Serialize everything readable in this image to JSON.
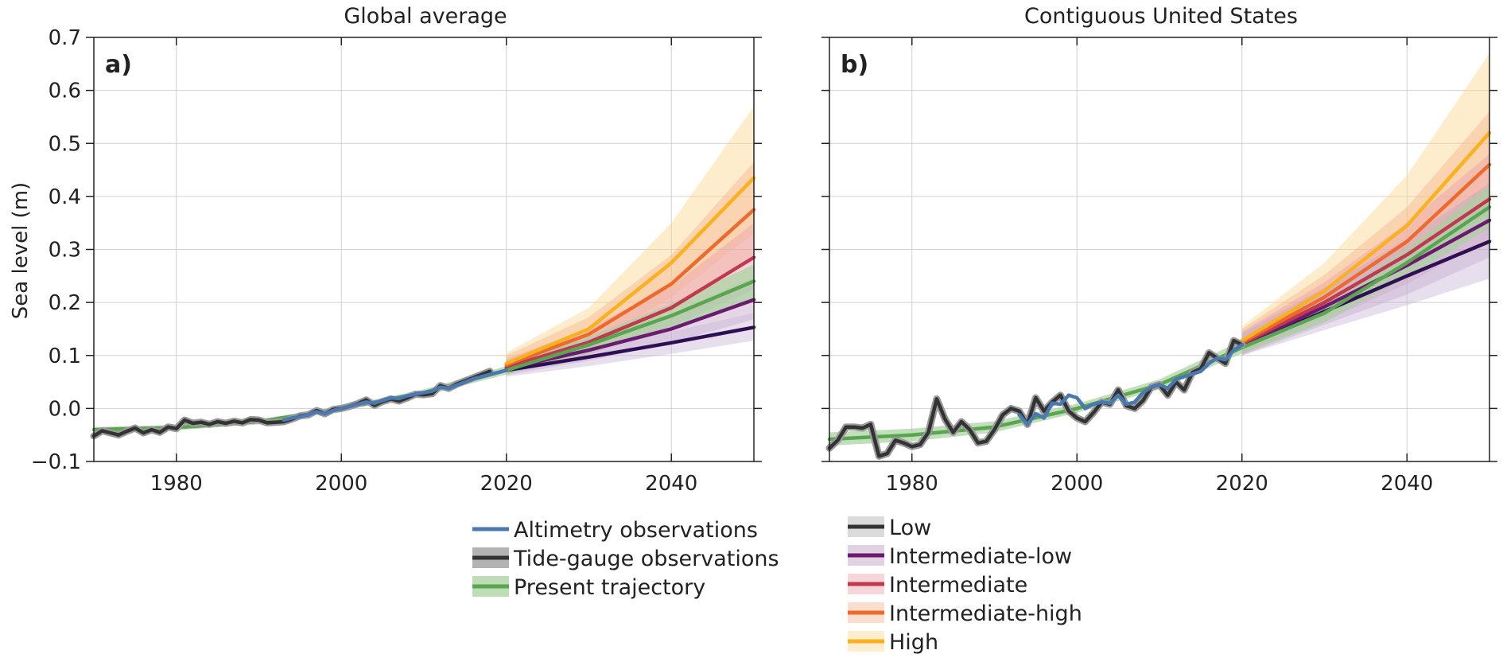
{
  "chart_data": [
    {
      "type": "line",
      "panel_label": "a)",
      "title": "Global average",
      "xlabel": "",
      "ylabel": "Sea level (m)",
      "xlim": [
        1970,
        2050
      ],
      "ylim": [
        -0.1,
        0.7
      ],
      "x_ticks": [
        "1980",
        "2000",
        "2020",
        "2040"
      ],
      "y_ticks": [
        "−0.1",
        "0.0",
        "0.1",
        "0.2",
        "0.3",
        "0.4",
        "0.5",
        "0.6",
        "0.7"
      ],
      "grid": true,
      "observations": {
        "tide_gauge": {
          "name": "Tide-gauge observations",
          "x": [
            1970,
            1971,
            1972,
            1973,
            1974,
            1975,
            1976,
            1977,
            1978,
            1979,
            1980,
            1981,
            1982,
            1983,
            1984,
            1985,
            1986,
            1987,
            1988,
            1989,
            1990,
            1991,
            1992,
            1993,
            1994,
            1995,
            1996,
            1997,
            1998,
            1999,
            2000,
            2001,
            2002,
            2003,
            2004,
            2005,
            2006,
            2007,
            2008,
            2009,
            2010,
            2011,
            2012,
            2013,
            2014,
            2015,
            2016,
            2017,
            2018
          ],
          "y": [
            -0.052,
            -0.042,
            -0.046,
            -0.05,
            -0.043,
            -0.037,
            -0.046,
            -0.04,
            -0.045,
            -0.035,
            -0.038,
            -0.022,
            -0.028,
            -0.026,
            -0.03,
            -0.025,
            -0.028,
            -0.024,
            -0.027,
            -0.021,
            -0.022,
            -0.027,
            -0.026,
            -0.025,
            -0.02,
            -0.014,
            -0.012,
            -0.004,
            -0.01,
            -0.002,
            0.0,
            0.004,
            0.009,
            0.016,
            0.006,
            0.013,
            0.018,
            0.014,
            0.02,
            0.027,
            0.026,
            0.028,
            0.043,
            0.038,
            0.046,
            0.052,
            0.058,
            0.064,
            0.07
          ]
        },
        "altimetry": {
          "name": "Altimetry observations",
          "x": [
            1993,
            1994,
            1995,
            1996,
            1997,
            1998,
            1999,
            2000,
            2001,
            2002,
            2003,
            2004,
            2005,
            2006,
            2007,
            2008,
            2009,
            2010,
            2011,
            2012,
            2013,
            2014,
            2015,
            2016,
            2017,
            2018,
            2019,
            2020
          ],
          "y": [
            -0.022,
            -0.018,
            -0.015,
            -0.012,
            -0.006,
            -0.01,
            -0.004,
            0.0,
            0.004,
            0.008,
            0.012,
            0.01,
            0.015,
            0.02,
            0.019,
            0.024,
            0.027,
            0.03,
            0.033,
            0.04,
            0.038,
            0.044,
            0.05,
            0.056,
            0.06,
            0.064,
            0.068,
            0.072
          ]
        }
      },
      "present_trajectory": {
        "name": "Present trajectory",
        "x": [
          1970,
          1980,
          1990,
          2000,
          2010,
          2020,
          2030,
          2040,
          2050
        ],
        "y": [
          -0.04,
          -0.036,
          -0.025,
          0.0,
          0.03,
          0.072,
          0.12,
          0.175,
          0.24
        ],
        "lower": [
          -0.045,
          -0.041,
          -0.03,
          -0.004,
          0.024,
          0.064,
          0.105,
          0.152,
          0.208
        ],
        "upper": [
          -0.035,
          -0.031,
          -0.02,
          0.004,
          0.036,
          0.08,
          0.135,
          0.198,
          0.272
        ]
      },
      "scenarios": [
        {
          "name": "Low",
          "x": [
            2020,
            2030,
            2040,
            2050
          ],
          "y": [
            0.072,
            0.097,
            0.124,
            0.153
          ],
          "lower": [
            0.06,
            0.08,
            0.103,
            0.128
          ],
          "upper": [
            0.082,
            0.113,
            0.145,
            0.18
          ]
        },
        {
          "name": "Intermediate-low",
          "x": [
            2020,
            2030,
            2040,
            2050
          ],
          "y": [
            0.075,
            0.11,
            0.15,
            0.205
          ],
          "lower": [
            0.063,
            0.09,
            0.124,
            0.168
          ],
          "upper": [
            0.088,
            0.13,
            0.178,
            0.248
          ]
        },
        {
          "name": "Intermediate",
          "x": [
            2020,
            2030,
            2040,
            2050
          ],
          "y": [
            0.078,
            0.125,
            0.19,
            0.285
          ],
          "lower": [
            0.064,
            0.102,
            0.155,
            0.225
          ],
          "upper": [
            0.093,
            0.152,
            0.23,
            0.35
          ]
        },
        {
          "name": "Intermediate-high",
          "x": [
            2020,
            2030,
            2040,
            2050
          ],
          "y": [
            0.082,
            0.14,
            0.235,
            0.375
          ],
          "lower": [
            0.066,
            0.112,
            0.185,
            0.29
          ],
          "upper": [
            0.1,
            0.172,
            0.29,
            0.465
          ]
        },
        {
          "name": "High",
          "x": [
            2020,
            2030,
            2040,
            2050
          ],
          "y": [
            0.085,
            0.15,
            0.275,
            0.435
          ],
          "lower": [
            0.068,
            0.118,
            0.21,
            0.33
          ],
          "upper": [
            0.105,
            0.19,
            0.35,
            0.57
          ]
        }
      ]
    },
    {
      "type": "line",
      "panel_label": "b)",
      "title": "Contiguous United States",
      "xlabel": "",
      "ylabel": "",
      "xlim": [
        1970,
        2050
      ],
      "ylim": [
        -0.1,
        0.7
      ],
      "x_ticks": [
        "1980",
        "2000",
        "2020",
        "2040"
      ],
      "y_ticks": [
        "−0.1",
        "0.0",
        "0.1",
        "0.2",
        "0.3",
        "0.4",
        "0.5",
        "0.6",
        "0.7"
      ],
      "grid": true,
      "observations": {
        "tide_gauge": {
          "name": "Tide-gauge observations",
          "x": [
            1970,
            1971,
            1972,
            1973,
            1974,
            1975,
            1976,
            1977,
            1978,
            1979,
            1980,
            1981,
            1982,
            1983,
            1984,
            1985,
            1986,
            1987,
            1988,
            1989,
            1990,
            1991,
            1992,
            1993,
            1994,
            1995,
            1996,
            1997,
            1998,
            1999,
            2000,
            2001,
            2002,
            2003,
            2004,
            2005,
            2006,
            2007,
            2008,
            2009,
            2010,
            2011,
            2012,
            2013,
            2014,
            2015,
            2016,
            2017,
            2018,
            2019,
            2020
          ],
          "y": [
            -0.075,
            -0.06,
            -0.035,
            -0.035,
            -0.037,
            -0.03,
            -0.09,
            -0.085,
            -0.06,
            -0.065,
            -0.072,
            -0.068,
            -0.045,
            0.018,
            -0.02,
            -0.045,
            -0.025,
            -0.04,
            -0.065,
            -0.062,
            -0.04,
            -0.012,
            0.0,
            -0.005,
            -0.03,
            0.02,
            -0.005,
            0.012,
            0.025,
            -0.005,
            -0.018,
            -0.025,
            -0.008,
            0.012,
            0.008,
            0.035,
            0.005,
            0.0,
            0.015,
            0.04,
            0.045,
            0.025,
            0.05,
            0.035,
            0.068,
            0.075,
            0.105,
            0.095,
            0.085,
            0.128,
            0.12
          ]
        },
        "altimetry": {
          "name": "Altimetry observations",
          "x": [
            1993,
            1994,
            1995,
            1996,
            1997,
            1998,
            1999,
            2000,
            2001,
            2002,
            2003,
            2004,
            2005,
            2006,
            2007,
            2008,
            2009,
            2010,
            2011,
            2012,
            2013,
            2014,
            2015,
            2016,
            2017,
            2018,
            2019,
            2020
          ],
          "y": [
            -0.012,
            -0.03,
            -0.01,
            -0.018,
            0.01,
            0.008,
            0.025,
            0.02,
            0.0,
            0.008,
            0.012,
            0.01,
            0.025,
            0.008,
            0.012,
            0.03,
            0.04,
            0.045,
            0.038,
            0.055,
            0.06,
            0.065,
            0.07,
            0.085,
            0.095,
            0.092,
            0.11,
            0.12
          ]
        }
      },
      "present_trajectory": {
        "name": "Present trajectory",
        "x": [
          1970,
          1980,
          1990,
          2000,
          2010,
          2020,
          2030,
          2040,
          2050
        ],
        "y": [
          -0.058,
          -0.05,
          -0.035,
          0.0,
          0.045,
          0.115,
          0.18,
          0.275,
          0.38
        ],
        "lower": [
          -0.07,
          -0.062,
          -0.045,
          -0.008,
          0.036,
          0.104,
          0.162,
          0.248,
          0.34
        ],
        "upper": [
          -0.045,
          -0.038,
          -0.024,
          0.009,
          0.055,
          0.128,
          0.198,
          0.302,
          0.42
        ]
      },
      "scenarios": [
        {
          "name": "Low",
          "x": [
            2020,
            2030,
            2040,
            2050
          ],
          "y": [
            0.118,
            0.183,
            0.25,
            0.315
          ],
          "lower": [
            0.1,
            0.148,
            0.195,
            0.245
          ],
          "upper": [
            0.14,
            0.22,
            0.3,
            0.385
          ]
        },
        {
          "name": "Intermediate-low",
          "x": [
            2020,
            2030,
            2040,
            2050
          ],
          "y": [
            0.12,
            0.192,
            0.27,
            0.355
          ],
          "lower": [
            0.1,
            0.158,
            0.215,
            0.285
          ],
          "upper": [
            0.142,
            0.228,
            0.32,
            0.425
          ]
        },
        {
          "name": "Intermediate",
          "x": [
            2020,
            2030,
            2040,
            2050
          ],
          "y": [
            0.122,
            0.2,
            0.29,
            0.395
          ],
          "lower": [
            0.102,
            0.165,
            0.235,
            0.32
          ],
          "upper": [
            0.145,
            0.238,
            0.35,
            0.48
          ]
        },
        {
          "name": "Intermediate-high",
          "x": [
            2020,
            2030,
            2040,
            2050
          ],
          "y": [
            0.125,
            0.21,
            0.315,
            0.46
          ],
          "lower": [
            0.104,
            0.172,
            0.255,
            0.37
          ],
          "upper": [
            0.15,
            0.252,
            0.38,
            0.56
          ]
        },
        {
          "name": "High",
          "x": [
            2020,
            2030,
            2040,
            2050
          ],
          "y": [
            0.128,
            0.222,
            0.345,
            0.52
          ],
          "lower": [
            0.105,
            0.18,
            0.28,
            0.415
          ],
          "upper": [
            0.155,
            0.275,
            0.44,
            0.67
          ]
        }
      ]
    }
  ],
  "legend": {
    "left": [
      {
        "label": "Altimetry observations",
        "color": "#4a78b0",
        "band": false
      },
      {
        "label": "Tide-gauge observations",
        "color": "#333333",
        "band_color": "#9a9a9a",
        "band": true
      },
      {
        "label": "Present trajectory",
        "color": "#5aa550",
        "band_color": "#a8d29f",
        "band": true
      }
    ],
    "right": [
      {
        "label": "Low",
        "color": "#333333",
        "band_color": "#cfcfcf",
        "band": true
      },
      {
        "label": "Intermediate-low",
        "color": "#6b1a6f",
        "band_color": "#d6c3da",
        "band": true
      },
      {
        "label": "Intermediate",
        "color": "#c0394e",
        "band_color": "#f2c9cf",
        "band": true
      },
      {
        "label": "Intermediate-high",
        "color": "#ee6a2c",
        "band_color": "#fbd3bd",
        "band": true
      },
      {
        "label": "High",
        "color": "#fbb01e",
        "band_color": "#fde7bf",
        "band": true
      }
    ]
  },
  "colors": {
    "altimetry": "#4a78b0",
    "tide_gauge": "#333333",
    "tide_gauge_band": "#9a9a9a",
    "present": "#5aa550",
    "present_band": "#a8d29f",
    "low": "#2f0f52",
    "low_band": "#c9b7d9",
    "intermediate_low": "#6b1a6f",
    "intermediate_low_band": "#c4a3c6",
    "intermediate": "#c0394e",
    "intermediate_band": "#e9a2ad",
    "intermediate_high": "#ee6a2c",
    "intermediate_high_band": "#f6b48f",
    "high": "#fbb01e",
    "high_band": "#fdd78d"
  }
}
